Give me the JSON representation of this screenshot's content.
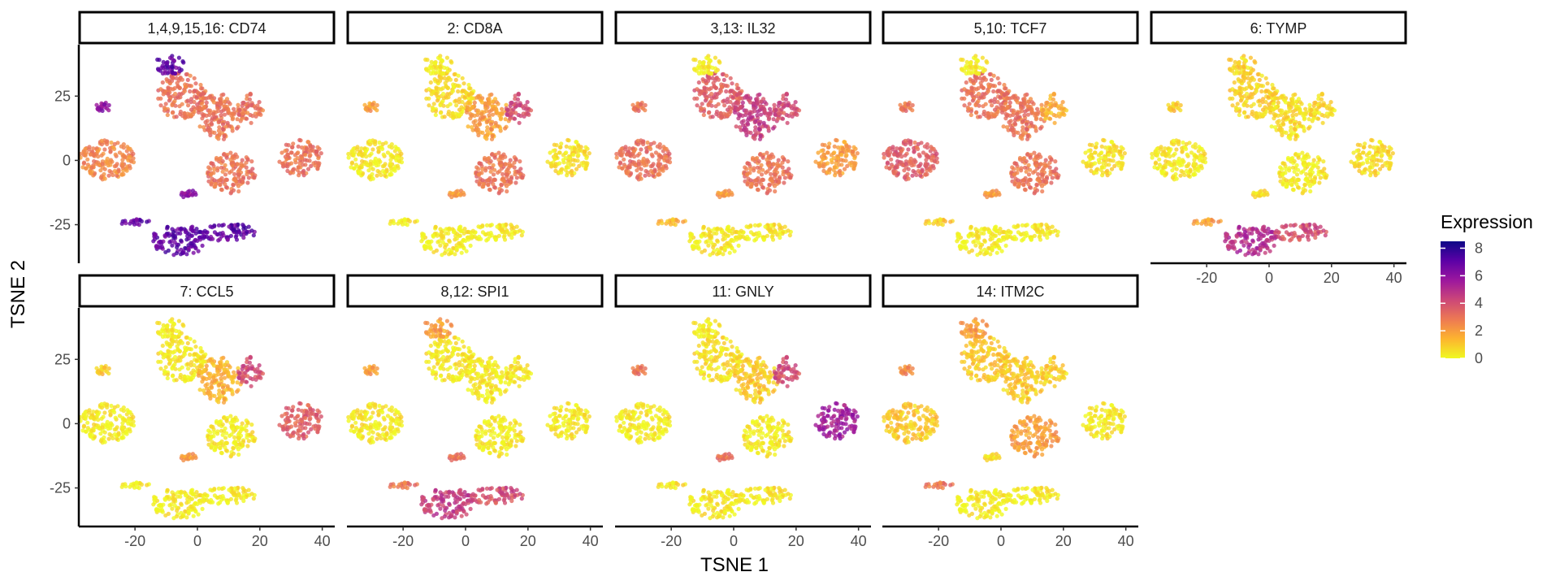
{
  "chart_data": {
    "type": "scatter",
    "layout": "faceted scatter (t-SNE feature plot)",
    "xlabel": "TSNE 1",
    "ylabel": "TSNE 2",
    "xlim": [
      -38,
      44
    ],
    "ylim": [
      -40,
      45
    ],
    "x_ticks": [
      -20,
      0,
      20,
      40
    ],
    "y_ticks": [
      25,
      0,
      -25
    ],
    "grid": false,
    "legend": {
      "title": "Expression",
      "position": "right",
      "ticks": [
        8,
        6,
        4,
        2,
        0
      ],
      "range": [
        0,
        8.5
      ],
      "colors": [
        "#f0f921",
        "#fdb42f",
        "#ed7953",
        "#cc4778",
        "#9c179e",
        "#5c01a6",
        "#0d0887"
      ]
    },
    "clusters": [
      {
        "id": "c1",
        "x": -29,
        "y": 0,
        "rx": 9,
        "ry": 8
      },
      {
        "id": "c2",
        "x": -5,
        "y": 25,
        "rx": 8,
        "ry": 9
      },
      {
        "id": "c3",
        "x": 7,
        "y": 17,
        "rx": 7,
        "ry": 9
      },
      {
        "id": "c4",
        "x": 17,
        "y": 20,
        "rx": 4,
        "ry": 6
      },
      {
        "id": "c5",
        "x": 11,
        "y": -5,
        "rx": 8,
        "ry": 8
      },
      {
        "id": "c6",
        "x": 33,
        "y": 1,
        "rx": 7,
        "ry": 7
      },
      {
        "id": "c7",
        "x": -6,
        "y": -31,
        "rx": 9,
        "ry": 6
      },
      {
        "id": "c8",
        "x": 10,
        "y": -28,
        "rx": 9,
        "ry": 3.5
      },
      {
        "id": "c9",
        "x": -9,
        "y": 37,
        "rx": 5,
        "ry": 4
      },
      {
        "id": "c10",
        "x": -30,
        "y": 21,
        "rx": 2.5,
        "ry": 2
      },
      {
        "id": "c11",
        "x": -20,
        "y": -24,
        "rx": 5,
        "ry": 1.2
      },
      {
        "id": "c12",
        "x": -3,
        "y": -13,
        "rx": 3,
        "ry": 1.5
      }
    ],
    "panels": [
      {
        "title": "1,4,9,15,16: CD74",
        "expression": [
          2.5,
          3,
          3,
          3,
          3,
          3,
          7,
          7,
          7,
          6,
          7,
          6
        ]
      },
      {
        "title": "2: CD8A",
        "expression": [
          0.3,
          0.6,
          2,
          4,
          3,
          0.5,
          0.2,
          0.2,
          0.2,
          2,
          0.3,
          2
        ]
      },
      {
        "title": "3,13: IL32",
        "expression": [
          3,
          3.5,
          4.5,
          4,
          3,
          2,
          0.3,
          0.3,
          0.2,
          3,
          1.5,
          2
        ]
      },
      {
        "title": "5,10: TCF7",
        "expression": [
          3.5,
          3,
          3,
          1.5,
          3,
          0.5,
          0.2,
          0.2,
          0.2,
          3,
          1,
          2
        ]
      },
      {
        "title": "6: TYMP",
        "expression": [
          0.3,
          0.8,
          0.6,
          0.6,
          0.3,
          0.6,
          5,
          4,
          0.8,
          1,
          2,
          0.5
        ]
      },
      {
        "title": "7: CCL5",
        "expression": [
          0.2,
          0.3,
          1.5,
          4,
          0.3,
          3.5,
          0.2,
          0.2,
          0.2,
          1,
          0.2,
          2
        ]
      },
      {
        "title": "8,12: SPI1",
        "expression": [
          0.3,
          0.3,
          0.3,
          0.3,
          0.3,
          0.3,
          4.5,
          4,
          2,
          2,
          3,
          3
        ]
      },
      {
        "title": "11: GNLY",
        "expression": [
          0.2,
          0.5,
          1,
          4,
          0.3,
          5.5,
          0.3,
          0.3,
          0.2,
          3,
          0.5,
          3
        ]
      },
      {
        "title": "14: ITM2C",
        "expression": [
          1,
          1,
          1,
          0.8,
          2,
          0.3,
          0.2,
          0.2,
          2,
          2.5,
          3,
          0.5
        ]
      }
    ]
  }
}
